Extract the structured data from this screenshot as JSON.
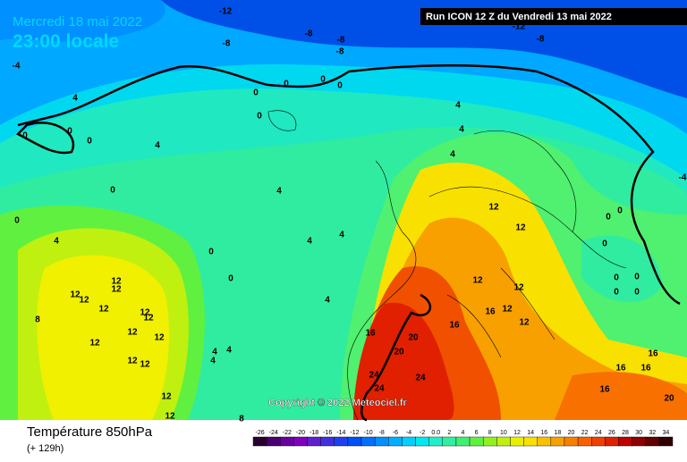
{
  "header": {
    "date": "Mercredi 18 mai 2022",
    "time": "23:00 locale",
    "run": "Run ICON 12 Z du Vendredi 13 mai 2022"
  },
  "copyright": "Copyright © 2022 Meteociel.fr",
  "footer": {
    "title": "Température 850hPa",
    "lead": "(+ 129h)"
  },
  "legend": {
    "labels": [
      "-26",
      "-24",
      "-22",
      "-20",
      "-18",
      "-16",
      "-14",
      "-12",
      "-10",
      "-8",
      "-6",
      "-4",
      "-2",
      "0.0",
      "2",
      "4",
      "6",
      "8",
      "10",
      "12",
      "14",
      "16",
      "18",
      "20",
      "22",
      "24",
      "26",
      "28",
      "30",
      "32",
      "34"
    ],
    "colors": [
      "#2a0030",
      "#4a0070",
      "#6a00a0",
      "#8000c0",
      "#6020d0",
      "#4030e0",
      "#2040f0",
      "#0050f8",
      "#0070ff",
      "#0090ff",
      "#00b0ff",
      "#00d0ff",
      "#00e8f0",
      "#20f0c8",
      "#30f0a0",
      "#40f070",
      "#60f040",
      "#90f020",
      "#c0f010",
      "#e8f000",
      "#f8e000",
      "#f8c000",
      "#f8a000",
      "#f88000",
      "#f86000",
      "#f04000",
      "#e02000",
      "#c00000",
      "#900000",
      "#600000",
      "#300000"
    ]
  },
  "contour_labels": [
    "-12",
    "-8",
    "-8",
    "-8",
    "-8",
    "-8",
    "-12",
    "-4",
    "4",
    "0",
    "0",
    "0",
    "4",
    "0",
    "0",
    "0",
    "0",
    "0",
    "0",
    "4",
    "4",
    "4",
    "4",
    "4",
    "4",
    "4",
    "0",
    "0",
    "0",
    "12",
    "12",
    "12",
    "12",
    "12",
    "12",
    "12",
    "12",
    "12",
    "12",
    "12",
    "12",
    "12",
    "12",
    "8",
    "4",
    "4",
    "4",
    "4",
    "12",
    "12",
    "12",
    "12",
    "16",
    "12",
    "16",
    "16",
    "20",
    "20",
    "24",
    "24",
    "24",
    "16",
    "16",
    "16",
    "16",
    "20",
    "0",
    "0",
    "0",
    "0",
    "0",
    "0",
    "0",
    "-4",
    "8",
    "12"
  ]
}
